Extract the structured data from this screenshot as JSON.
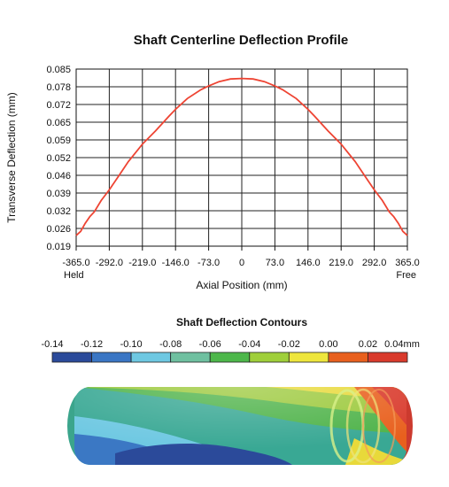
{
  "chart_data": [
    {
      "type": "line",
      "title": "Shaft Centerline Deflection Profile",
      "xlabel": "Axial Position (mm)",
      "ylabel": "Transverse Deflection (mm)",
      "x_ticks": [
        "-365.0",
        "-292.0",
        "-219.0",
        "-146.0",
        "-73.0",
        "0",
        "73.0",
        "146.0",
        "219.0",
        "292.0",
        "365.0"
      ],
      "y_ticks": [
        "0.085",
        "0.078",
        "0.072",
        "0.065",
        "0.059",
        "0.052",
        "0.046",
        "0.039",
        "0.032",
        "0.026",
        "0.019"
      ],
      "xlim": [
        -365.0,
        365.0
      ],
      "ylim": [
        0.019,
        0.085
      ],
      "grid": true,
      "end_labels": {
        "left": "Held",
        "right": "Free"
      },
      "series": [
        {
          "color": "#ee4433",
          "x": [
            -365.0,
            -355.0,
            -345.0,
            -335.0,
            -325.0,
            -310.0,
            -292.0,
            -270.0,
            -250.0,
            -219.0,
            -190.0,
            -160.0,
            -146.0,
            -120.0,
            -90.0,
            -73.0,
            -50.0,
            -25.0,
            0.0,
            25.0,
            50.0,
            73.0,
            90.0,
            120.0,
            146.0,
            160.0,
            190.0,
            219.0,
            250.0,
            270.0,
            292.0,
            310.0,
            325.0,
            335.0,
            345.0,
            355.0,
            365.0
          ],
          "y": [
            0.023,
            0.0245,
            0.0275,
            0.03,
            0.0318,
            0.036,
            0.04,
            0.0455,
            0.0505,
            0.057,
            0.062,
            0.0675,
            0.07,
            0.074,
            0.0773,
            0.0787,
            0.0803,
            0.0813,
            0.0815,
            0.0813,
            0.0803,
            0.0787,
            0.0773,
            0.074,
            0.07,
            0.0675,
            0.062,
            0.057,
            0.0505,
            0.0455,
            0.04,
            0.036,
            0.0318,
            0.03,
            0.0275,
            0.0245,
            0.023
          ]
        }
      ]
    },
    {
      "type": "heatmap",
      "title": "Shaft Deflection Contours",
      "colorbar_labels": [
        "-0.14",
        "-0.12",
        "-0.10",
        "-0.08",
        "-0.06",
        "-0.04",
        "-0.02",
        "0.00",
        "0.02",
        "0.04mm"
      ],
      "colorbar_colors": [
        "#2b4a9a",
        "#3a76c4",
        "#6ec8e2",
        "#6fc0a0",
        "#4db74a",
        "#9fcf3a",
        "#eee63c",
        "#e8601e",
        "#d93a2c"
      ]
    }
  ]
}
